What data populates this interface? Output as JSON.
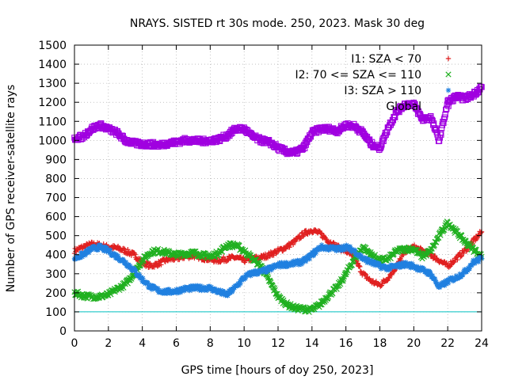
{
  "chart_data": {
    "type": "scatter",
    "title": "NRAYS. SISTED rt 30s mode. 250, 2023. Mask 30 deg",
    "xlabel": "GPS time [hours of doy 250, 2023]",
    "ylabel": "Number of GPS receiver-satellite rays",
    "xlim": [
      0,
      24
    ],
    "ylim": [
      0,
      1500
    ],
    "xticks": [
      0,
      2,
      4,
      6,
      8,
      10,
      12,
      14,
      16,
      18,
      20,
      22,
      24
    ],
    "yticks": [
      0,
      100,
      200,
      300,
      400,
      500,
      600,
      700,
      800,
      900,
      1000,
      1100,
      1200,
      1300,
      1400,
      1500
    ],
    "grid": true,
    "legend_position": "top-right",
    "threshold_line": {
      "value": 100,
      "color": "#00c0c0"
    },
    "series": [
      {
        "name": "I1: SZA < 70",
        "marker": "+",
        "color": "#e02020",
        "points": [
          [
            0,
            420
          ],
          [
            0.5,
            440
          ],
          [
            1,
            455
          ],
          [
            1.5,
            450
          ],
          [
            2,
            440
          ],
          [
            2.5,
            435
          ],
          [
            3,
            420
          ],
          [
            3.5,
            400
          ],
          [
            4,
            360
          ],
          [
            4.5,
            340
          ],
          [
            5,
            355
          ],
          [
            5.5,
            375
          ],
          [
            6,
            380
          ],
          [
            6.5,
            390
          ],
          [
            7,
            395
          ],
          [
            7.5,
            385
          ],
          [
            8,
            375
          ],
          [
            8.5,
            370
          ],
          [
            9,
            380
          ],
          [
            9.5,
            385
          ],
          [
            10,
            370
          ],
          [
            10.5,
            380
          ],
          [
            11,
            385
          ],
          [
            11.5,
            400
          ],
          [
            12,
            420
          ],
          [
            12.5,
            440
          ],
          [
            13,
            470
          ],
          [
            13.5,
            510
          ],
          [
            14,
            530
          ],
          [
            14.5,
            510
          ],
          [
            15,
            470
          ],
          [
            15.5,
            440
          ],
          [
            16,
            420
          ],
          [
            16.5,
            380
          ],
          [
            17,
            300
          ],
          [
            17.5,
            260
          ],
          [
            18,
            240
          ],
          [
            18.5,
            280
          ],
          [
            19,
            340
          ],
          [
            19.5,
            420
          ],
          [
            20,
            440
          ],
          [
            20.5,
            420
          ],
          [
            21,
            400
          ],
          [
            21.5,
            370
          ],
          [
            22,
            340
          ],
          [
            22.5,
            380
          ],
          [
            23,
            420
          ],
          [
            23.5,
            470
          ],
          [
            24,
            520
          ]
        ]
      },
      {
        "name": "I2: 70 <= SZA <= 110",
        "marker": "x",
        "color": "#20b020",
        "points": [
          [
            0,
            200
          ],
          [
            0.5,
            185
          ],
          [
            1,
            180
          ],
          [
            1.5,
            180
          ],
          [
            2,
            190
          ],
          [
            2.5,
            220
          ],
          [
            3,
            245
          ],
          [
            3.5,
            300
          ],
          [
            4,
            370
          ],
          [
            4.5,
            415
          ],
          [
            5,
            420
          ],
          [
            5.5,
            410
          ],
          [
            6,
            400
          ],
          [
            6.5,
            405
          ],
          [
            7,
            410
          ],
          [
            7.5,
            400
          ],
          [
            8,
            390
          ],
          [
            8.5,
            410
          ],
          [
            9,
            450
          ],
          [
            9.5,
            450
          ],
          [
            10,
            420
          ],
          [
            10.5,
            380
          ],
          [
            11,
            340
          ],
          [
            11.5,
            260
          ],
          [
            12,
            180
          ],
          [
            12.5,
            140
          ],
          [
            13,
            120
          ],
          [
            13.5,
            115
          ],
          [
            14,
            110
          ],
          [
            14.5,
            140
          ],
          [
            15,
            190
          ],
          [
            15.5,
            230
          ],
          [
            16,
            300
          ],
          [
            16.5,
            380
          ],
          [
            17,
            440
          ],
          [
            17.5,
            400
          ],
          [
            18,
            370
          ],
          [
            18.5,
            380
          ],
          [
            19,
            420
          ],
          [
            19.5,
            430
          ],
          [
            20,
            430
          ],
          [
            20.5,
            390
          ],
          [
            21,
            420
          ],
          [
            21.5,
            500
          ],
          [
            22,
            570
          ],
          [
            22.5,
            520
          ],
          [
            23,
            470
          ],
          [
            23.5,
            430
          ],
          [
            24,
            390
          ]
        ]
      },
      {
        "name": "I3: SZA > 110",
        "marker": "*",
        "color": "#2080e0",
        "points": [
          [
            0,
            380
          ],
          [
            0.5,
            400
          ],
          [
            1,
            430
          ],
          [
            1.5,
            440
          ],
          [
            2,
            420
          ],
          [
            2.5,
            390
          ],
          [
            3,
            360
          ],
          [
            3.5,
            320
          ],
          [
            4,
            270
          ],
          [
            4.5,
            230
          ],
          [
            5,
            210
          ],
          [
            5.5,
            205
          ],
          [
            6,
            210
          ],
          [
            6.5,
            220
          ],
          [
            7,
            225
          ],
          [
            7.5,
            225
          ],
          [
            8,
            225
          ],
          [
            8.5,
            205
          ],
          [
            9,
            190
          ],
          [
            9.5,
            230
          ],
          [
            10,
            280
          ],
          [
            10.5,
            305
          ],
          [
            11,
            310
          ],
          [
            11.5,
            325
          ],
          [
            12,
            345
          ],
          [
            12.5,
            350
          ],
          [
            13,
            355
          ],
          [
            13.5,
            365
          ],
          [
            14,
            400
          ],
          [
            14.5,
            440
          ],
          [
            15,
            435
          ],
          [
            15.5,
            430
          ],
          [
            16,
            440
          ],
          [
            16.5,
            420
          ],
          [
            17,
            380
          ],
          [
            17.5,
            360
          ],
          [
            18,
            340
          ],
          [
            18.5,
            330
          ],
          [
            19,
            340
          ],
          [
            19.5,
            350
          ],
          [
            20,
            340
          ],
          [
            20.5,
            320
          ],
          [
            21,
            300
          ],
          [
            21.5,
            230
          ],
          [
            22,
            260
          ],
          [
            22.5,
            280
          ],
          [
            23,
            310
          ],
          [
            23.5,
            360
          ],
          [
            24,
            380
          ]
        ]
      },
      {
        "name": "Global",
        "marker": "square",
        "color": "#a000e0",
        "points": [
          [
            0,
            1010
          ],
          [
            0.5,
            1020
          ],
          [
            1,
            1060
          ],
          [
            1.5,
            1080
          ],
          [
            2,
            1060
          ],
          [
            2.5,
            1040
          ],
          [
            3,
            1000
          ],
          [
            3.5,
            985
          ],
          [
            4,
            980
          ],
          [
            4.5,
            980
          ],
          [
            5,
            975
          ],
          [
            5.5,
            985
          ],
          [
            6,
            990
          ],
          [
            6.5,
            1000
          ],
          [
            7,
            1000
          ],
          [
            7.5,
            995
          ],
          [
            8,
            1000
          ],
          [
            8.5,
            1005
          ],
          [
            9,
            1025
          ],
          [
            9.5,
            1060
          ],
          [
            10,
            1060
          ],
          [
            10.5,
            1020
          ],
          [
            11,
            1000
          ],
          [
            11.5,
            990
          ],
          [
            12,
            960
          ],
          [
            12.5,
            940
          ],
          [
            13,
            935
          ],
          [
            13.5,
            960
          ],
          [
            14,
            1040
          ],
          [
            14.5,
            1060
          ],
          [
            15,
            1060
          ],
          [
            15.5,
            1050
          ],
          [
            16,
            1080
          ],
          [
            16.5,
            1075
          ],
          [
            17,
            1040
          ],
          [
            17.5,
            980
          ],
          [
            18,
            960
          ],
          [
            18.5,
            1070
          ],
          [
            19,
            1150
          ],
          [
            19.5,
            1190
          ],
          [
            20,
            1190
          ],
          [
            20.5,
            1110
          ],
          [
            21,
            1120
          ],
          [
            21.5,
            1000
          ],
          [
            22,
            1200
          ],
          [
            22.5,
            1230
          ],
          [
            23,
            1220
          ],
          [
            23.5,
            1240
          ],
          [
            24,
            1280
          ]
        ]
      }
    ]
  }
}
